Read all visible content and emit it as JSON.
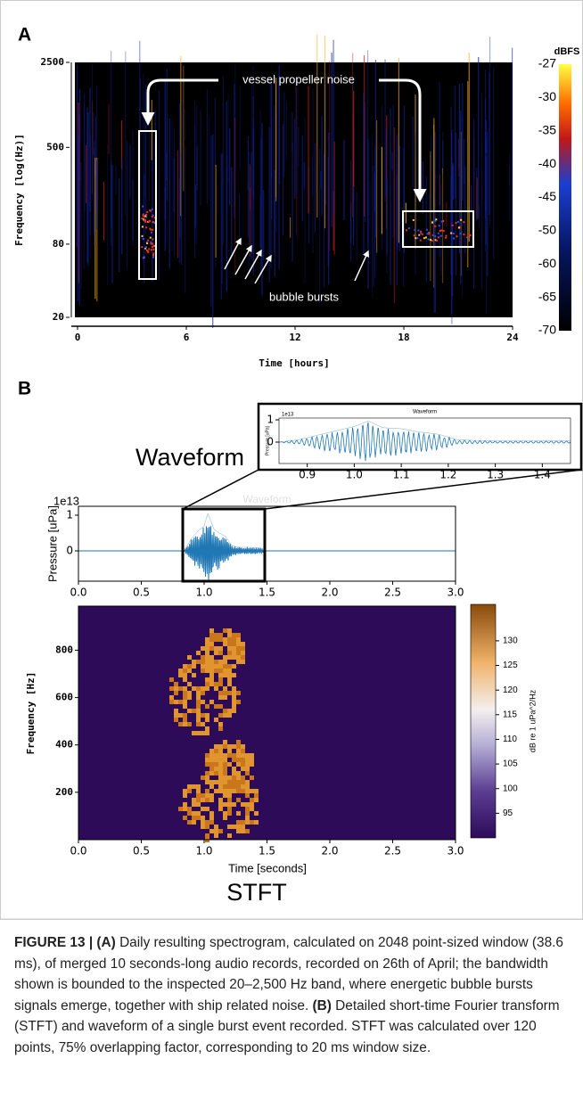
{
  "panel_labels": [
    "A",
    "B"
  ],
  "chart_data": [
    {
      "type": "spectrogram",
      "xlabel": "Time [hours]",
      "ylabel": "Frequency [log(Hz)]",
      "xlim": [
        0,
        24
      ],
      "xticks": [
        0,
        6,
        12,
        18,
        24
      ],
      "ylim": [
        20,
        2500
      ],
      "yticks": [
        20,
        80,
        500,
        2500
      ],
      "log_y": true,
      "colorbar": {
        "title": "dBFS",
        "ticks": [
          -27,
          -30,
          -35,
          -40,
          -45,
          -50,
          -60,
          -65,
          -70
        ]
      },
      "annotations": [
        "vessel propeller noise",
        "bubble bursts"
      ]
    },
    {
      "type": "line",
      "title": "Waveform",
      "exponent": "1e13",
      "ylabel": "Pressure [uPa]",
      "color": "#1f77b4",
      "xlim": [
        0.84,
        1.46
      ],
      "xticks": [
        0.9,
        {
          "value": 1,
          "label": "1.0"
        },
        1.1,
        1.2,
        1.3,
        1.4
      ],
      "ylim": [
        -0.96,
        1.08
      ],
      "yticks": [
        0,
        1
      ],
      "x": [
        0.84,
        0.88,
        0.92,
        0.96,
        1.0,
        1.03,
        1.06,
        1.1,
        1.14,
        1.18,
        1.22,
        1.3,
        1.4,
        1.46
      ],
      "values": [
        0,
        0.1,
        0.3,
        0.5,
        0.7,
        0.95,
        0.65,
        0.6,
        0.45,
        0.35,
        0.1,
        0.05,
        0.05,
        0.05
      ]
    },
    {
      "type": "line",
      "title": "Waveform",
      "exponent": "1e13",
      "ylabel": "Pressure [uPa]",
      "color": "#1f77b4",
      "xlim": [
        0,
        3
      ],
      "xticks": [
        {
          "value": 0,
          "label": "0.0"
        },
        0.5,
        {
          "value": 1,
          "label": "1.0"
        },
        1.5,
        {
          "value": 2,
          "label": "2.0"
        },
        2.5,
        {
          "value": 3,
          "label": "3.0"
        }
      ],
      "ylim": [
        -0.85,
        1.25
      ],
      "yticks": [
        0,
        1
      ],
      "x": [
        0,
        0.84,
        0.9,
        0.95,
        1.0,
        1.03,
        1.08,
        1.12,
        1.17,
        1.22,
        1.28,
        1.35,
        1.45,
        1.5,
        3.0
      ],
      "values": [
        0,
        0,
        0.35,
        0.55,
        0.7,
        1.05,
        0.6,
        0.5,
        0.4,
        0.15,
        0.1,
        0.1,
        0.08,
        0,
        0
      ],
      "big_label": "Waveform"
    },
    {
      "type": "heatmap",
      "xlabel": "Time [seconds]",
      "ylabel": "Frequency [Hz]",
      "xlim": [
        0,
        3
      ],
      "xticks": [
        {
          "value": 0,
          "label": "0.0"
        },
        0.5,
        {
          "value": 1,
          "label": "1.0"
        },
        1.5,
        {
          "value": 2,
          "label": "2.0"
        },
        2.5,
        {
          "value": 3,
          "label": "3.0"
        }
      ],
      "ylim": [
        0,
        986
      ],
      "yticks": [
        200,
        400,
        600,
        800
      ],
      "colorbar": {
        "label": "dB re 1 uPa^2/Hz",
        "lim": [
          90,
          137.4
        ],
        "ticks": [
          95,
          100,
          105,
          110,
          115,
          120,
          125,
          130
        ]
      },
      "big_label": "STFT"
    }
  ],
  "caption": {
    "figure_label": "FIGURE 13 |",
    "parts": [
      {
        "label": "(A)",
        "text": "Daily resulting spectrogram, calculated on 2048 point-sized window (38.6 ms), of merged 10 seconds-long audio records, recorded on 26th of April; the bandwidth shown is bounded to the inspected 20–2,500 Hz band, where energetic bubble bursts signals emerge, together with ship related noise."
      },
      {
        "label": "(B)",
        "text": "Detailed short-time Fourier transform (STFT) and waveform of a single burst event recorded. STFT was calculated over 120 points, 75% overlapping factor, corresponding to 20 ms window size."
      }
    ]
  }
}
